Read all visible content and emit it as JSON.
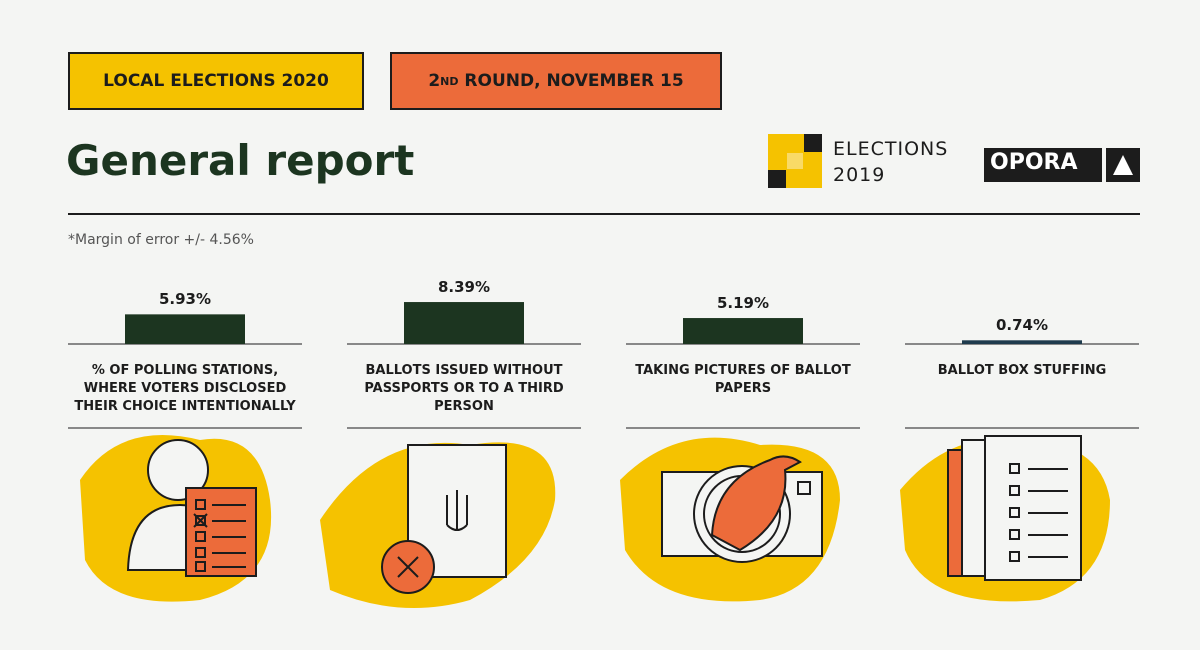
{
  "header": {
    "tag": "LOCAL ELECTIONS 2020",
    "round": {
      "number": "2",
      "suffix": "ND",
      "rest": " ROUND, NOVEMBER 15"
    },
    "title": "General report",
    "note": "*Margin of error +/- 4.56%"
  },
  "logos": {
    "elections": "ELECTIONS",
    "year": "2019",
    "opora": "OPORA"
  },
  "chart_data": {
    "type": "bar",
    "categories": [
      "% OF POLLING STATIONS, WHERE VOTERS DISCLOSED THEIR CHOICE INTENTIONALLY",
      "BALLOTS ISSUED WITHOUT PASSPORTS OR TO A THIRD PERSON",
      "TAKING PICTURES OF BALLOT PAPERS",
      "BALLOT BOX STUFFING"
    ],
    "values": [
      5.93,
      8.39,
      5.19,
      0.74
    ],
    "value_labels": [
      "5.93%",
      "8.39%",
      "5.19%",
      "0.74%"
    ],
    "colors": [
      "#1c3520",
      "#1c3520",
      "#1c3520",
      "#1f3b4d"
    ]
  }
}
